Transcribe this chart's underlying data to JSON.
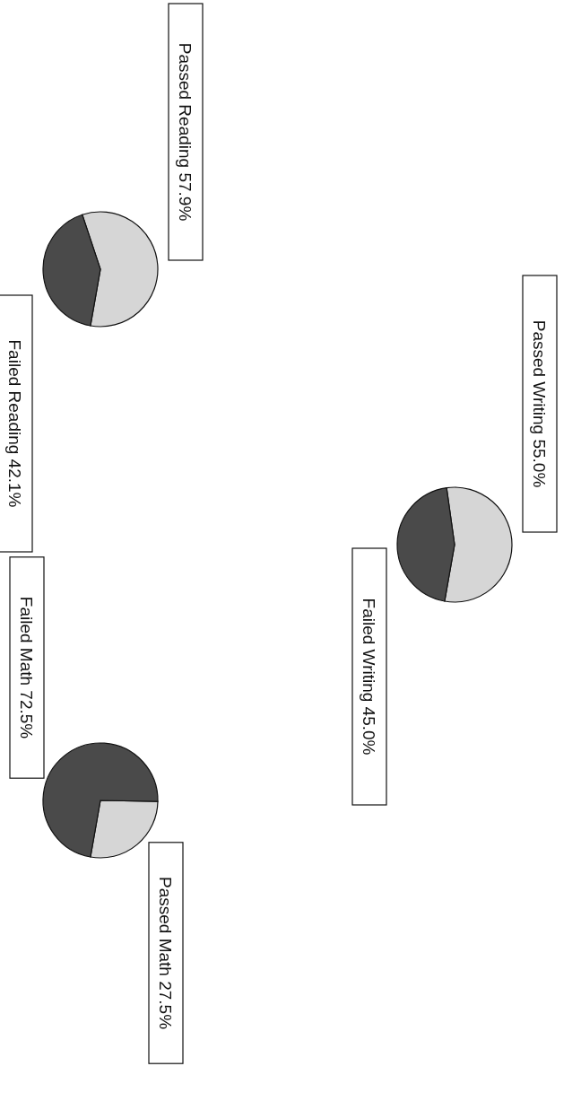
{
  "chart_data": [
    {
      "type": "pie",
      "categories": [
        "Passed Reading",
        "Failed Reading"
      ],
      "values": [
        57.9,
        42.1
      ],
      "value_labels": [
        "57.9%",
        "42.1%"
      ],
      "colors": [
        "#d6d6d6",
        "#4a4a4a"
      ]
    },
    {
      "type": "pie",
      "categories": [
        "Passed Writing",
        "Failed Writing"
      ],
      "values": [
        55.0,
        45.0
      ],
      "value_labels": [
        "55.0%",
        "45.0%"
      ],
      "colors": [
        "#d6d6d6",
        "#4a4a4a"
      ]
    },
    {
      "type": "pie",
      "categories": [
        "Passed Math",
        "Failed Math"
      ],
      "values": [
        27.5,
        72.5
      ],
      "value_labels": [
        "27.5%",
        "72.5%"
      ],
      "colors": [
        "#d6d6d6",
        "#4a4a4a"
      ]
    }
  ]
}
